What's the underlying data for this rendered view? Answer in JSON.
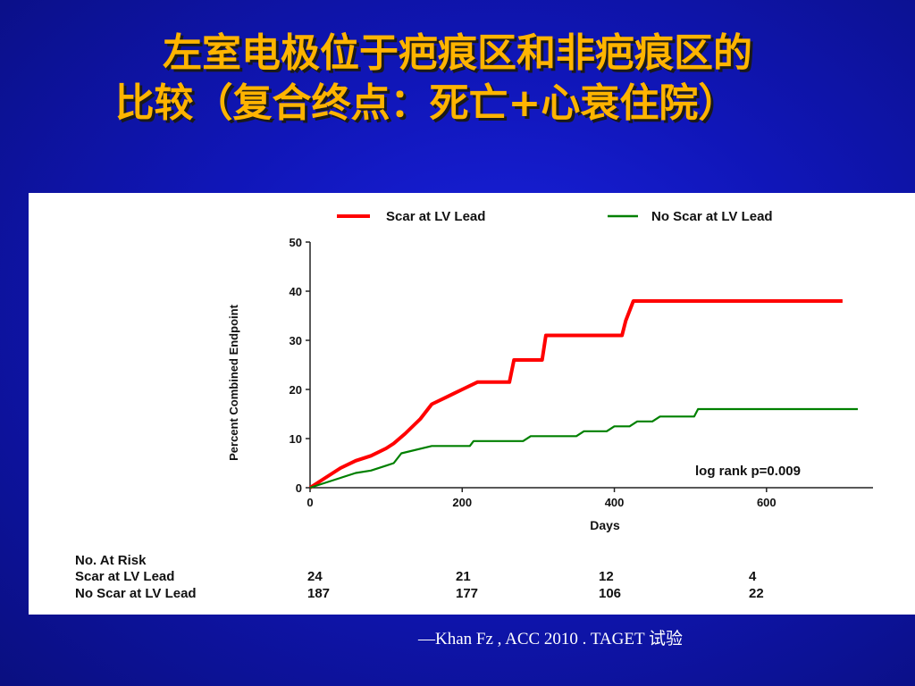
{
  "slide": {
    "title_line1": "左室电极位于疤痕区和非疤痕区的",
    "title_line2": "比较（复合终点：死亡+心衰住院）",
    "source": "—Khan Fz , ACC 2010 . TAGET 试验"
  },
  "chart_data": {
    "type": "line",
    "xlabel": "Days",
    "ylabel": "Percent Combined Endpoint",
    "xlim": [
      0,
      740
    ],
    "ylim": [
      0,
      50
    ],
    "x_ticks": [
      0,
      200,
      400,
      600
    ],
    "y_ticks": [
      0,
      10,
      20,
      30,
      40,
      50
    ],
    "x_tick_labels": [
      "0",
      "200",
      "400",
      "600"
    ],
    "y_tick_labels": [
      "0",
      "10",
      "20",
      "30",
      "40",
      "50"
    ],
    "legend_position": "top",
    "annotation": "log rank p=0.009",
    "series": [
      {
        "name": "Scar at LV Lead",
        "color": "#ff0000",
        "points": [
          [
            0,
            0
          ],
          [
            20,
            2
          ],
          [
            40,
            4
          ],
          [
            60,
            5.5
          ],
          [
            80,
            6.5
          ],
          [
            100,
            8
          ],
          [
            110,
            9
          ],
          [
            125,
            11
          ],
          [
            145,
            14
          ],
          [
            160,
            17
          ],
          [
            180,
            18.5
          ],
          [
            200,
            20
          ],
          [
            220,
            21.5
          ],
          [
            240,
            21.5
          ],
          [
            262,
            21.5
          ],
          [
            268,
            26
          ],
          [
            305,
            26
          ],
          [
            310,
            31
          ],
          [
            410,
            31
          ],
          [
            415,
            34
          ],
          [
            425,
            38
          ],
          [
            700,
            38
          ]
        ]
      },
      {
        "name": "No Scar at LV Lead",
        "color": "#008000",
        "points": [
          [
            0,
            0
          ],
          [
            20,
            1
          ],
          [
            40,
            2
          ],
          [
            60,
            3
          ],
          [
            80,
            3.5
          ],
          [
            100,
            4.5
          ],
          [
            110,
            5
          ],
          [
            120,
            7
          ],
          [
            160,
            8.5
          ],
          [
            210,
            8.5
          ],
          [
            215,
            9.5
          ],
          [
            280,
            9.5
          ],
          [
            290,
            10.5
          ],
          [
            350,
            10.5
          ],
          [
            360,
            11.5
          ],
          [
            390,
            11.5
          ],
          [
            400,
            12.5
          ],
          [
            420,
            12.5
          ],
          [
            430,
            13.5
          ],
          [
            450,
            13.5
          ],
          [
            460,
            14.5
          ],
          [
            505,
            14.5
          ],
          [
            510,
            16
          ],
          [
            720,
            16
          ]
        ]
      }
    ]
  },
  "risk_table": {
    "header": "No. At Risk",
    "rows": [
      {
        "label": "Scar at LV Lead",
        "values": [
          "24",
          "21",
          "12",
          "4"
        ]
      },
      {
        "label": "No Scar at LV Lead",
        "values": [
          "187",
          "177",
          "106",
          "22"
        ]
      }
    ]
  }
}
